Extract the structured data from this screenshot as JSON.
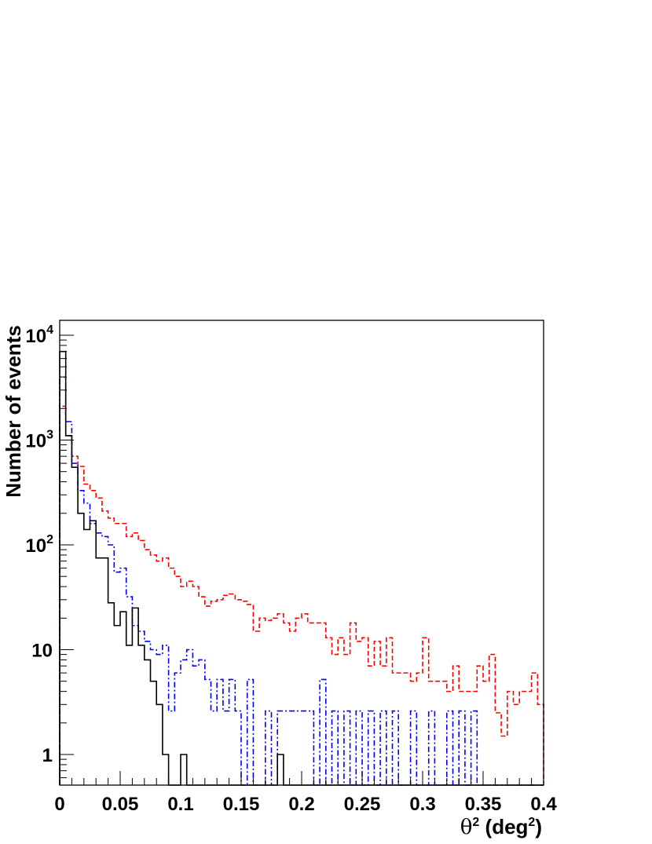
{
  "chart_data": {
    "type": "histogram",
    "title": "",
    "xlabel": "θ2 (deg2)",
    "ylabel": "Number of events",
    "x_axis_parts": {
      "theta": "θ",
      "sup1": "2",
      "mid": " (deg",
      "sup2": "2",
      "close": ")"
    },
    "xlim": [
      0,
      0.4
    ],
    "ylim": [
      0.5,
      13000
    ],
    "yscale": "log",
    "grid": false,
    "legend": "none",
    "bin_width": 0.005,
    "x_ticks": [
      {
        "value": 0,
        "label": "0"
      },
      {
        "value": 0.05,
        "label": "0.05"
      },
      {
        "value": 0.1,
        "label": "0.1"
      },
      {
        "value": 0.15,
        "label": "0.15"
      },
      {
        "value": 0.2,
        "label": "0.2"
      },
      {
        "value": 0.25,
        "label": "0.25"
      },
      {
        "value": 0.3,
        "label": "0.3"
      },
      {
        "value": 0.35,
        "label": "0.35"
      },
      {
        "value": 0.4,
        "label": "0.4"
      }
    ],
    "y_ticks": [
      {
        "value": 1,
        "label": "1"
      },
      {
        "value": 10,
        "label": "10"
      },
      {
        "value": 100,
        "base": "10",
        "exp": "2"
      },
      {
        "value": 1000,
        "base": "10",
        "exp": "3"
      },
      {
        "value": 10000,
        "base": "10",
        "exp": "4"
      }
    ],
    "series": [
      {
        "color": "#ff0000",
        "style": "dashed",
        "bins": [
          {
            "x": 0.0,
            "y": 2100
          },
          {
            "x": 0.005,
            "y": 1100
          },
          {
            "x": 0.01,
            "y": 700
          },
          {
            "x": 0.015,
            "y": 560
          },
          {
            "x": 0.02,
            "y": 380
          },
          {
            "x": 0.025,
            "y": 330
          },
          {
            "x": 0.03,
            "y": 280
          },
          {
            "x": 0.035,
            "y": 210
          },
          {
            "x": 0.04,
            "y": 180
          },
          {
            "x": 0.045,
            "y": 160
          },
          {
            "x": 0.05,
            "y": 160
          },
          {
            "x": 0.055,
            "y": 120
          },
          {
            "x": 0.06,
            "y": 130
          },
          {
            "x": 0.065,
            "y": 110
          },
          {
            "x": 0.07,
            "y": 90
          },
          {
            "x": 0.075,
            "y": 80
          },
          {
            "x": 0.08,
            "y": 70
          },
          {
            "x": 0.085,
            "y": 75
          },
          {
            "x": 0.09,
            "y": 60
          },
          {
            "x": 0.095,
            "y": 50
          },
          {
            "x": 0.1,
            "y": 40
          },
          {
            "x": 0.105,
            "y": 45
          },
          {
            "x": 0.11,
            "y": 40
          },
          {
            "x": 0.115,
            "y": 32
          },
          {
            "x": 0.12,
            "y": 26
          },
          {
            "x": 0.125,
            "y": 29
          },
          {
            "x": 0.13,
            "y": 30
          },
          {
            "x": 0.135,
            "y": 33
          },
          {
            "x": 0.14,
            "y": 34
          },
          {
            "x": 0.145,
            "y": 30
          },
          {
            "x": 0.15,
            "y": 29
          },
          {
            "x": 0.155,
            "y": 27
          },
          {
            "x": 0.16,
            "y": 15
          },
          {
            "x": 0.165,
            "y": 20
          },
          {
            "x": 0.17,
            "y": 19
          },
          {
            "x": 0.175,
            "y": 20
          },
          {
            "x": 0.18,
            "y": 22
          },
          {
            "x": 0.185,
            "y": 18
          },
          {
            "x": 0.19,
            "y": 15
          },
          {
            "x": 0.195,
            "y": 20
          },
          {
            "x": 0.2,
            "y": 22
          },
          {
            "x": 0.205,
            "y": 18
          },
          {
            "x": 0.21,
            "y": 18
          },
          {
            "x": 0.215,
            "y": 18
          },
          {
            "x": 0.22,
            "y": 13
          },
          {
            "x": 0.225,
            "y": 9
          },
          {
            "x": 0.23,
            "y": 13
          },
          {
            "x": 0.235,
            "y": 9
          },
          {
            "x": 0.24,
            "y": 18
          },
          {
            "x": 0.245,
            "y": 12
          },
          {
            "x": 0.25,
            "y": 13
          },
          {
            "x": 0.255,
            "y": 7
          },
          {
            "x": 0.26,
            "y": 12
          },
          {
            "x": 0.265,
            "y": 7
          },
          {
            "x": 0.27,
            "y": 13
          },
          {
            "x": 0.275,
            "y": 6
          },
          {
            "x": 0.28,
            "y": 6
          },
          {
            "x": 0.285,
            "y": 6
          },
          {
            "x": 0.29,
            "y": 5
          },
          {
            "x": 0.295,
            "y": 6
          },
          {
            "x": 0.3,
            "y": 13
          },
          {
            "x": 0.305,
            "y": 5
          },
          {
            "x": 0.31,
            "y": 5
          },
          {
            "x": 0.315,
            "y": 5
          },
          {
            "x": 0.32,
            "y": 4
          },
          {
            "x": 0.325,
            "y": 7
          },
          {
            "x": 0.33,
            "y": 4
          },
          {
            "x": 0.335,
            "y": 4
          },
          {
            "x": 0.34,
            "y": 4
          },
          {
            "x": 0.345,
            "y": 7
          },
          {
            "x": 0.35,
            "y": 5
          },
          {
            "x": 0.355,
            "y": 9
          },
          {
            "x": 0.36,
            "y": 2.5
          },
          {
            "x": 0.365,
            "y": 1.5
          },
          {
            "x": 0.37,
            "y": 4
          },
          {
            "x": 0.375,
            "y": 3
          },
          {
            "x": 0.38,
            "y": 4
          },
          {
            "x": 0.385,
            "y": 4
          },
          {
            "x": 0.39,
            "y": 6
          },
          {
            "x": 0.395,
            "y": 3
          }
        ]
      },
      {
        "color": "#0000ff",
        "style": "dash-dot",
        "bins": [
          {
            "x": 0.0,
            "y": 4000
          },
          {
            "x": 0.005,
            "y": 1500
          },
          {
            "x": 0.01,
            "y": 600
          },
          {
            "x": 0.015,
            "y": 330
          },
          {
            "x": 0.02,
            "y": 250
          },
          {
            "x": 0.025,
            "y": 160
          },
          {
            "x": 0.03,
            "y": 130
          },
          {
            "x": 0.035,
            "y": 120
          },
          {
            "x": 0.04,
            "y": 100
          },
          {
            "x": 0.045,
            "y": 55
          },
          {
            "x": 0.05,
            "y": 60
          },
          {
            "x": 0.055,
            "y": 32
          },
          {
            "x": 0.06,
            "y": 17
          },
          {
            "x": 0.065,
            "y": 15
          },
          {
            "x": 0.07,
            "y": 12
          },
          {
            "x": 0.075,
            "y": 10
          },
          {
            "x": 0.08,
            "y": 9
          },
          {
            "x": 0.085,
            "y": 11
          },
          {
            "x": 0.09,
            "y": 2.6
          },
          {
            "x": 0.095,
            "y": 6
          },
          {
            "x": 0.1,
            "y": 8
          },
          {
            "x": 0.105,
            "y": 10
          },
          {
            "x": 0.11,
            "y": 7
          },
          {
            "x": 0.115,
            "y": 8
          },
          {
            "x": 0.12,
            "y": 5.2
          },
          {
            "x": 0.125,
            "y": 2.6
          },
          {
            "x": 0.13,
            "y": 5.2
          },
          {
            "x": 0.135,
            "y": 2.6
          },
          {
            "x": 0.14,
            "y": 5.2
          },
          {
            "x": 0.145,
            "y": 2.6
          },
          {
            "x": 0.15,
            "y": 0
          },
          {
            "x": 0.155,
            "y": 5.2
          },
          {
            "x": 0.16,
            "y": 0
          },
          {
            "x": 0.165,
            "y": 0
          },
          {
            "x": 0.17,
            "y": 2.6
          },
          {
            "x": 0.175,
            "y": 0
          },
          {
            "x": 0.18,
            "y": 2.6
          },
          {
            "x": 0.185,
            "y": 2.6
          },
          {
            "x": 0.19,
            "y": 2.6
          },
          {
            "x": 0.195,
            "y": 2.6
          },
          {
            "x": 0.2,
            "y": 2.6
          },
          {
            "x": 0.205,
            "y": 2.6
          },
          {
            "x": 0.21,
            "y": 0
          },
          {
            "x": 0.215,
            "y": 5.2
          },
          {
            "x": 0.22,
            "y": 0
          },
          {
            "x": 0.225,
            "y": 2.6
          },
          {
            "x": 0.23,
            "y": 0
          },
          {
            "x": 0.235,
            "y": 2.6
          },
          {
            "x": 0.24,
            "y": 0
          },
          {
            "x": 0.245,
            "y": 2.6
          },
          {
            "x": 0.25,
            "y": 0
          },
          {
            "x": 0.255,
            "y": 2.6
          },
          {
            "x": 0.26,
            "y": 0
          },
          {
            "x": 0.265,
            "y": 2.6
          },
          {
            "x": 0.27,
            "y": 0
          },
          {
            "x": 0.275,
            "y": 2.6
          },
          {
            "x": 0.28,
            "y": 0
          },
          {
            "x": 0.285,
            "y": 0
          },
          {
            "x": 0.29,
            "y": 2.6
          },
          {
            "x": 0.295,
            "y": 0
          },
          {
            "x": 0.3,
            "y": 0
          },
          {
            "x": 0.305,
            "y": 2.6
          },
          {
            "x": 0.31,
            "y": 0
          },
          {
            "x": 0.315,
            "y": 0
          },
          {
            "x": 0.32,
            "y": 2.6
          },
          {
            "x": 0.325,
            "y": 0
          },
          {
            "x": 0.33,
            "y": 2.6
          },
          {
            "x": 0.335,
            "y": 0
          },
          {
            "x": 0.34,
            "y": 2.6
          },
          {
            "x": 0.345,
            "y": 0
          },
          {
            "x": 0.35,
            "y": 0
          },
          {
            "x": 0.355,
            "y": 0
          },
          {
            "x": 0.36,
            "y": 0
          },
          {
            "x": 0.365,
            "y": 0
          },
          {
            "x": 0.37,
            "y": 0
          },
          {
            "x": 0.375,
            "y": 0
          },
          {
            "x": 0.38,
            "y": 0
          },
          {
            "x": 0.385,
            "y": 0
          },
          {
            "x": 0.39,
            "y": 0
          },
          {
            "x": 0.395,
            "y": 0
          }
        ]
      },
      {
        "color": "#000000",
        "style": "solid",
        "bins": [
          {
            "x": 0.0,
            "y": 7000
          },
          {
            "x": 0.005,
            "y": 1100
          },
          {
            "x": 0.01,
            "y": 550
          },
          {
            "x": 0.015,
            "y": 200
          },
          {
            "x": 0.02,
            "y": 140
          },
          {
            "x": 0.025,
            "y": 170
          },
          {
            "x": 0.03,
            "y": 75
          },
          {
            "x": 0.035,
            "y": 75
          },
          {
            "x": 0.04,
            "y": 28
          },
          {
            "x": 0.045,
            "y": 17
          },
          {
            "x": 0.05,
            "y": 23
          },
          {
            "x": 0.055,
            "y": 11
          },
          {
            "x": 0.06,
            "y": 25
          },
          {
            "x": 0.065,
            "y": 11
          },
          {
            "x": 0.07,
            "y": 8
          },
          {
            "x": 0.075,
            "y": 5
          },
          {
            "x": 0.08,
            "y": 3
          },
          {
            "x": 0.085,
            "y": 1
          },
          {
            "x": 0.09,
            "y": 0
          },
          {
            "x": 0.095,
            "y": 0
          },
          {
            "x": 0.1,
            "y": 1
          },
          {
            "x": 0.105,
            "y": 0
          },
          {
            "x": 0.11,
            "y": 0
          },
          {
            "x": 0.115,
            "y": 0
          },
          {
            "x": 0.12,
            "y": 0
          },
          {
            "x": 0.125,
            "y": 0
          },
          {
            "x": 0.13,
            "y": 0
          },
          {
            "x": 0.135,
            "y": 0
          },
          {
            "x": 0.14,
            "y": 0
          },
          {
            "x": 0.145,
            "y": 0
          },
          {
            "x": 0.15,
            "y": 0
          },
          {
            "x": 0.155,
            "y": 0
          },
          {
            "x": 0.16,
            "y": 0
          },
          {
            "x": 0.165,
            "y": 0
          },
          {
            "x": 0.17,
            "y": 0
          },
          {
            "x": 0.175,
            "y": 0
          },
          {
            "x": 0.18,
            "y": 1
          },
          {
            "x": 0.185,
            "y": 0
          },
          {
            "x": 0.19,
            "y": 0
          },
          {
            "x": 0.195,
            "y": 0
          },
          {
            "x": 0.2,
            "y": 0
          },
          {
            "x": 0.205,
            "y": 0
          },
          {
            "x": 0.21,
            "y": 0
          },
          {
            "x": 0.215,
            "y": 0
          },
          {
            "x": 0.22,
            "y": 0
          },
          {
            "x": 0.225,
            "y": 0
          },
          {
            "x": 0.23,
            "y": 0
          },
          {
            "x": 0.235,
            "y": 0
          },
          {
            "x": 0.24,
            "y": 0
          },
          {
            "x": 0.245,
            "y": 0
          },
          {
            "x": 0.25,
            "y": 0
          },
          {
            "x": 0.255,
            "y": 0
          },
          {
            "x": 0.26,
            "y": 0
          },
          {
            "x": 0.265,
            "y": 0
          },
          {
            "x": 0.27,
            "y": 0
          },
          {
            "x": 0.275,
            "y": 0
          },
          {
            "x": 0.28,
            "y": 0
          },
          {
            "x": 0.285,
            "y": 0
          },
          {
            "x": 0.29,
            "y": 0
          },
          {
            "x": 0.295,
            "y": 0
          },
          {
            "x": 0.3,
            "y": 0
          },
          {
            "x": 0.305,
            "y": 0
          },
          {
            "x": 0.31,
            "y": 0
          },
          {
            "x": 0.315,
            "y": 0
          },
          {
            "x": 0.32,
            "y": 0
          },
          {
            "x": 0.325,
            "y": 0
          },
          {
            "x": 0.33,
            "y": 0
          },
          {
            "x": 0.335,
            "y": 0
          },
          {
            "x": 0.34,
            "y": 0
          },
          {
            "x": 0.345,
            "y": 0
          },
          {
            "x": 0.35,
            "y": 0
          },
          {
            "x": 0.355,
            "y": 0
          },
          {
            "x": 0.36,
            "y": 0
          },
          {
            "x": 0.365,
            "y": 0
          },
          {
            "x": 0.37,
            "y": 0
          },
          {
            "x": 0.375,
            "y": 0
          },
          {
            "x": 0.38,
            "y": 0
          },
          {
            "x": 0.385,
            "y": 0
          },
          {
            "x": 0.39,
            "y": 0
          },
          {
            "x": 0.395,
            "y": 0
          }
        ]
      }
    ]
  }
}
